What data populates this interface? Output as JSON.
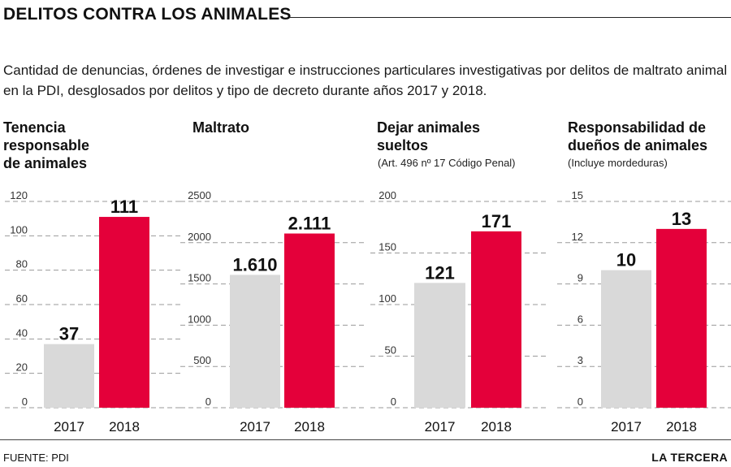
{
  "header": {
    "title": "DELITOS CONTRA LOS ANIMALES",
    "subtitle": "Cantidad de denuncias, órdenes de investigar e instrucciones particulares investigativas por delitos de maltrato animal en la PDI, desglosados por delitos y tipo de decreto durante años 2017 y 2018."
  },
  "footer": {
    "source": "FUENTE: PDI",
    "brand": "LA TERCERA"
  },
  "colors": {
    "bar_2017": "#d9d9d9",
    "bar_2018": "#e4003a",
    "grid": "#9a9a9a",
    "text": "#111111"
  },
  "chart_data": [
    {
      "type": "bar",
      "title_lines": [
        "Tenencia",
        "responsable",
        "de animales"
      ],
      "note": "",
      "categories": [
        "2017",
        "2018"
      ],
      "values": [
        37,
        111
      ],
      "value_labels": [
        "37",
        "111"
      ],
      "ylim": [
        0,
        120
      ],
      "yticks": [
        0,
        20,
        40,
        60,
        80,
        100,
        120
      ],
      "ytick_labels": [
        "0",
        "20",
        "40",
        "60",
        "80",
        "100",
        "120"
      ],
      "grid": true
    },
    {
      "type": "bar",
      "title_lines": [
        "Maltrato"
      ],
      "note": "",
      "categories": [
        "2017",
        "2018"
      ],
      "values": [
        1610,
        2111
      ],
      "value_labels": [
        "1.610",
        "2.111"
      ],
      "ylim": [
        0,
        2500
      ],
      "yticks": [
        0,
        500,
        1000,
        1500,
        2000,
        2500
      ],
      "ytick_labels": [
        "0",
        "500",
        "1000",
        "1500",
        "2000",
        "2500"
      ],
      "grid": true
    },
    {
      "type": "bar",
      "title_lines": [
        "Dejar animales",
        "sueltos"
      ],
      "note": "(Art. 496 nº 17 Código Penal)",
      "categories": [
        "2017",
        "2018"
      ],
      "values": [
        121,
        171
      ],
      "value_labels": [
        "121",
        "171"
      ],
      "ylim": [
        0,
        200
      ],
      "yticks": [
        0,
        50,
        100,
        150,
        200
      ],
      "ytick_labels": [
        "0",
        "50",
        "100",
        "150",
        "200"
      ],
      "grid": true
    },
    {
      "type": "bar",
      "title_lines": [
        "Responsabilidad de",
        "dueños de animales"
      ],
      "note": "(Incluye mordeduras)",
      "categories": [
        "2017",
        "2018"
      ],
      "values": [
        10,
        13
      ],
      "value_labels": [
        "10",
        "13"
      ],
      "ylim": [
        0,
        15
      ],
      "yticks": [
        0,
        3,
        6,
        9,
        12,
        15
      ],
      "ytick_labels": [
        "0",
        "3",
        "6",
        "9",
        "12",
        "15"
      ],
      "grid": true
    }
  ]
}
